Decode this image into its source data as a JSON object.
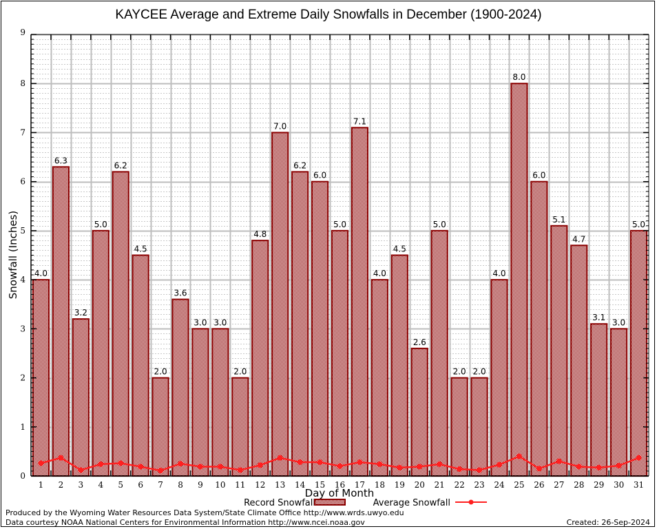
{
  "chart_data": {
    "type": "bar",
    "title": "KAYCEE Average and Extreme Daily Snowfalls in December (1900-2024)",
    "xlabel": "Day of Month",
    "ylabel": "Snowfall (Inches)",
    "ylim": [
      0,
      9
    ],
    "yticks": [
      "0",
      "1",
      "2",
      "3",
      "4",
      "5",
      "6",
      "7",
      "8",
      "9"
    ],
    "categories": [
      "1",
      "2",
      "3",
      "4",
      "5",
      "6",
      "7",
      "8",
      "9",
      "10",
      "11",
      "12",
      "13",
      "14",
      "15",
      "16",
      "17",
      "18",
      "19",
      "20",
      "21",
      "22",
      "23",
      "24",
      "25",
      "26",
      "27",
      "28",
      "29",
      "30",
      "31"
    ],
    "grid": true,
    "legend_placement": "bottom-center",
    "series": [
      {
        "name": "Record Snowfall",
        "kind": "bar",
        "color": "#8b0000",
        "values": [
          4.0,
          6.3,
          3.2,
          5.0,
          6.2,
          4.5,
          2.0,
          3.6,
          3.0,
          3.0,
          2.0,
          4.8,
          7.0,
          6.2,
          6.0,
          5.0,
          7.1,
          4.0,
          4.5,
          2.6,
          5.0,
          2.0,
          2.0,
          4.0,
          8.0,
          6.0,
          5.1,
          4.7,
          3.1,
          3.0,
          5.0
        ],
        "labels": [
          "4.0",
          "6.3",
          "3.2",
          "5.0",
          "6.2",
          "4.5",
          "2.0",
          "3.6",
          "3.0",
          "3.0",
          "2.0",
          "4.8",
          "7.0",
          "6.2",
          "6.0",
          "5.0",
          "7.1",
          "4.0",
          "4.5",
          "2.6",
          "5.0",
          "2.0",
          "2.0",
          "4.0",
          "8.0",
          "6.0",
          "5.1",
          "4.7",
          "3.1",
          "3.0",
          "5.0"
        ]
      },
      {
        "name": "Average Snowfall",
        "kind": "line",
        "color": "#ff2020",
        "values": [
          0.26,
          0.37,
          0.12,
          0.24,
          0.26,
          0.19,
          0.11,
          0.25,
          0.19,
          0.19,
          0.12,
          0.22,
          0.37,
          0.28,
          0.28,
          0.2,
          0.28,
          0.24,
          0.17,
          0.19,
          0.24,
          0.14,
          0.12,
          0.23,
          0.4,
          0.15,
          0.3,
          0.19,
          0.17,
          0.21,
          0.37
        ]
      }
    ]
  },
  "footer": {
    "line1": "Produced by the Wyoming Water Resources Data System/State Climate Office http://www.wrds.uwyo.edu",
    "line2": "Data courtesy NOAA National Centers for Environmental Information http://www.ncei.noaa.gov",
    "created": "Created: 26-Sep-2024"
  }
}
